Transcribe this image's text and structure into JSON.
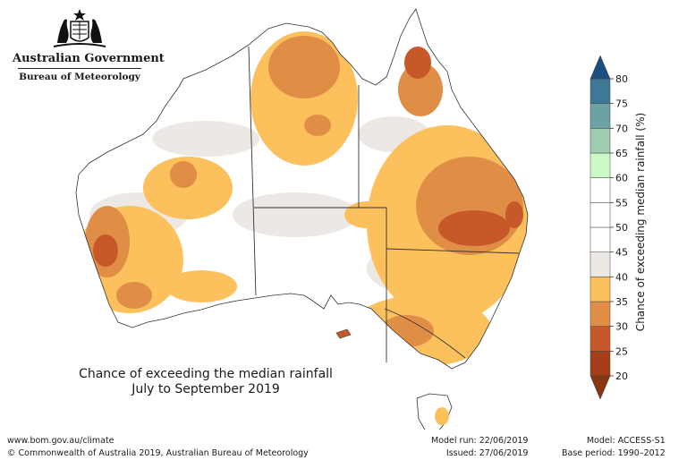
{
  "header": {
    "government": "Australian Government",
    "bureau": "Bureau of Meteorology"
  },
  "map": {
    "title_line1": "Chance of exceeding the median rainfall",
    "title_line2": "July to September 2019"
  },
  "legend": {
    "label": "Chance of exceeding median rainfall (%)",
    "ticks": [
      "80",
      "75",
      "70",
      "65",
      "60",
      "55",
      "50",
      "45",
      "40",
      "35",
      "30",
      "25",
      "20"
    ],
    "bins": [
      {
        "from": 20,
        "to": 25,
        "color": "#a33d1a"
      },
      {
        "from": 25,
        "to": 30,
        "color": "#c7582a"
      },
      {
        "from": 30,
        "to": 35,
        "color": "#e08e45"
      },
      {
        "from": 35,
        "to": 40,
        "color": "#fcc05d"
      },
      {
        "from": 40,
        "to": 45,
        "color": "#ece8e3"
      },
      {
        "from": 45,
        "to": 50,
        "color": "#ffffff"
      },
      {
        "from": 50,
        "to": 55,
        "color": "#ffffff"
      },
      {
        "from": 55,
        "to": 60,
        "color": "#ffffff"
      },
      {
        "from": 60,
        "to": 65,
        "color": "#ccf9c8"
      },
      {
        "from": 65,
        "to": 70,
        "color": "#9fcbb0"
      },
      {
        "from": 70,
        "to": 75,
        "color": "#6da2a5"
      },
      {
        "from": 75,
        "to": 80,
        "color": "#3d7897"
      }
    ],
    "over_color": "#1b4f80",
    "under_color": "#8a3512"
  },
  "footer": {
    "url": "www.bom.gov.au/climate",
    "copyright": "© Commonwealth of Australia 2019, Australian Bureau of Meteorology",
    "model_run": "Model run: 22/06/2019",
    "issued": "Issued: 27/06/2019",
    "model": "Model: ACCESS-S1",
    "base_period": "Base period: 1990–2012"
  }
}
